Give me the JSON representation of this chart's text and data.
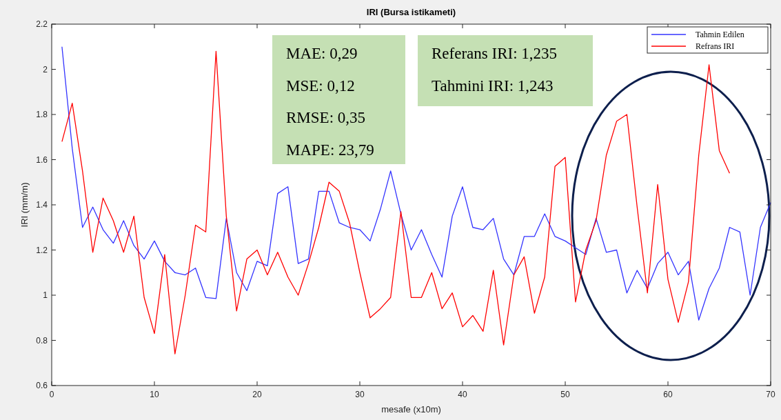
{
  "chart_data": {
    "type": "line",
    "title": "IRI (Bursa istikameti)",
    "xlabel": "mesafe (x10m)",
    "ylabel": "IRI (mm/m)",
    "x": [
      1,
      2,
      3,
      4,
      5,
      6,
      7,
      8,
      9,
      10,
      11,
      12,
      13,
      14,
      15,
      16,
      17,
      18,
      19,
      20,
      21,
      22,
      23,
      24,
      25,
      26,
      27,
      28,
      29,
      30,
      31,
      32,
      33,
      34,
      35,
      36,
      37,
      38,
      39,
      40,
      41,
      42,
      43,
      44,
      45,
      46,
      47,
      48,
      49,
      50,
      51,
      52,
      53,
      54,
      55,
      56,
      57,
      58,
      59,
      60,
      61,
      62,
      63,
      64,
      65,
      66,
      67,
      68,
      69,
      70
    ],
    "series": [
      {
        "name": "Tahmin Edilen",
        "color": "#3333ff",
        "values": [
          2.1,
          1.65,
          1.3,
          1.39,
          1.29,
          1.23,
          1.33,
          1.22,
          1.16,
          1.24,
          1.15,
          1.1,
          1.09,
          1.12,
          0.99,
          0.985,
          1.34,
          1.1,
          1.02,
          1.15,
          1.13,
          1.45,
          1.48,
          1.14,
          1.16,
          1.46,
          1.46,
          1.32,
          1.3,
          1.29,
          1.24,
          1.38,
          1.55,
          1.36,
          1.2,
          1.29,
          1.18,
          1.08,
          1.35,
          1.48,
          1.3,
          1.29,
          1.34,
          1.16,
          1.09,
          1.26,
          1.26,
          1.36,
          1.26,
          1.24,
          1.21,
          1.18,
          1.34,
          1.19,
          1.2,
          1.01,
          1.11,
          1.03,
          1.14,
          1.19,
          1.09,
          1.15,
          0.89,
          1.03,
          1.12,
          1.3,
          1.28,
          1.0,
          1.3,
          1.41
        ]
      },
      {
        "name": "Refrans IRI",
        "color": "#ff0000",
        "values": [
          1.68,
          1.85,
          1.55,
          1.19,
          1.43,
          1.33,
          1.19,
          1.35,
          0.99,
          0.83,
          1.18,
          0.74,
          1.0,
          1.31,
          1.28,
          2.08,
          1.35,
          0.93,
          1.16,
          1.2,
          1.09,
          1.19,
          1.08,
          1.0,
          1.14,
          1.3,
          1.5,
          1.46,
          1.32,
          1.1,
          0.9,
          0.94,
          0.99,
          1.37,
          0.99,
          0.99,
          1.1,
          0.94,
          1.01,
          0.86,
          0.91,
          0.84,
          1.11,
          0.78,
          1.09,
          1.17,
          0.92,
          1.08,
          1.57,
          1.61,
          0.97,
          1.2,
          1.33,
          1.62,
          1.77,
          1.8,
          1.39,
          1.01,
          1.49,
          1.07,
          0.88,
          1.06,
          1.62,
          2.02,
          1.64,
          1.54,
          null,
          null,
          null,
          null
        ]
      }
    ],
    "xlim": [
      0,
      70
    ],
    "xticks": [
      0,
      10,
      20,
      30,
      40,
      50,
      60,
      70
    ],
    "ylim": [
      0.6,
      2.2
    ],
    "yticks": [
      0.6,
      0.8,
      1,
      1.2,
      1.4,
      1.6,
      1.8,
      2,
      2.2
    ],
    "annotations": [
      "MAE: 0,29",
      "MSE: 0,12",
      "RMSE: 0,35",
      "MAPE: 23,79",
      "Referans IRI: 1,235",
      "Tahmini IRI: 1,243"
    ],
    "grid": false,
    "legend": "top right",
    "marker": "none",
    "line_style": "solid"
  }
}
